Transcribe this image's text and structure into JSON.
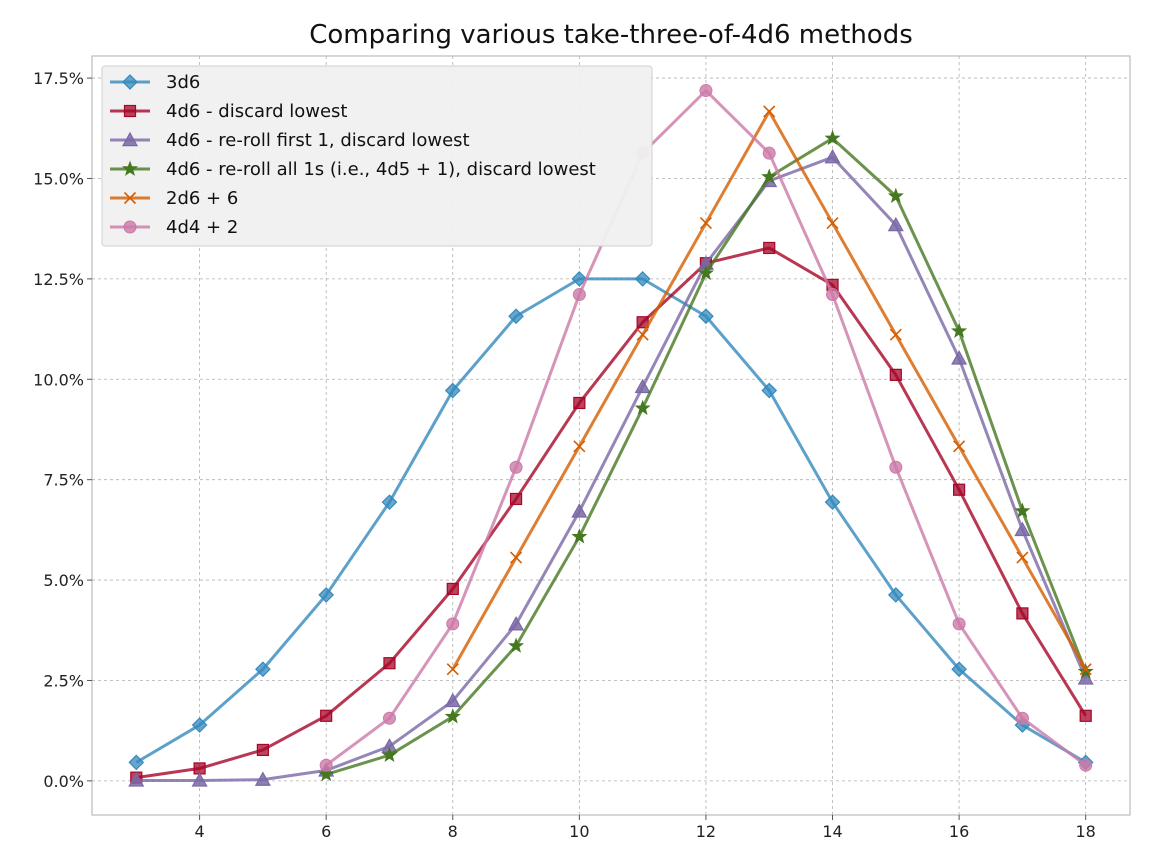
{
  "chart_data": {
    "type": "line",
    "title": "Comparing various take-three-of-4d6 methods",
    "xlabel": "",
    "ylabel": "",
    "xlim": [
      2.3,
      18.7
    ],
    "ylim": [
      -0.0085,
      0.1805
    ],
    "xticks": [
      4,
      6,
      8,
      10,
      12,
      14,
      16,
      18
    ],
    "xtick_labels": [
      "4",
      "6",
      "8",
      "10",
      "12",
      "14",
      "16",
      "18"
    ],
    "yticks": [
      0.0,
      0.025,
      0.05,
      0.075,
      0.1,
      0.125,
      0.15,
      0.175
    ],
    "ytick_labels": [
      "0.0%",
      "2.5%",
      "5.0%",
      "7.5%",
      "10.0%",
      "12.5%",
      "15.0%",
      "17.5%"
    ],
    "grid": true,
    "legend_position": "top-left",
    "series": [
      {
        "name": "3d6",
        "color": "#348abd",
        "marker": "diamond",
        "x": [
          3,
          4,
          5,
          6,
          7,
          8,
          9,
          10,
          11,
          12,
          13,
          14,
          15,
          16,
          17,
          18
        ],
        "y": [
          0.0046,
          0.0139,
          0.0278,
          0.0463,
          0.0694,
          0.0972,
          0.1157,
          0.125,
          0.125,
          0.1157,
          0.0972,
          0.0694,
          0.0463,
          0.0278,
          0.0139,
          0.0046
        ]
      },
      {
        "name": "4d6 - discard lowest",
        "color": "#a60628",
        "marker": "square",
        "x": [
          3,
          4,
          5,
          6,
          7,
          8,
          9,
          10,
          11,
          12,
          13,
          14,
          15,
          16,
          17,
          18
        ],
        "y": [
          0.0008,
          0.0031,
          0.0077,
          0.0162,
          0.0293,
          0.0478,
          0.0702,
          0.0941,
          0.1142,
          0.1289,
          0.1327,
          0.1235,
          0.1011,
          0.0725,
          0.0417,
          0.0162
        ]
      },
      {
        "name": "4d6 - re-roll first 1, discard lowest",
        "color": "#7a68a6",
        "marker": "triangle",
        "x": [
          3,
          4,
          5,
          6,
          7,
          8,
          9,
          10,
          11,
          12,
          13,
          14,
          15,
          16,
          17,
          18
        ],
        "y": [
          0.0001,
          0.0001,
          0.0003,
          0.0026,
          0.0086,
          0.0199,
          0.039,
          0.0671,
          0.0981,
          0.1288,
          0.1494,
          0.1553,
          0.1384,
          0.1052,
          0.0625,
          0.0255
        ]
      },
      {
        "name": "4d6 - re-roll all 1s (i.e., 4d5 + 1), discard lowest",
        "color": "#467821",
        "marker": "star",
        "x": [
          6,
          7,
          8,
          9,
          10,
          11,
          12,
          13,
          14,
          15,
          16,
          17,
          18
        ],
        "y": [
          0.0016,
          0.0064,
          0.016,
          0.0336,
          0.0608,
          0.0928,
          0.1264,
          0.1504,
          0.16,
          0.1456,
          0.112,
          0.0672,
          0.0272
        ]
      },
      {
        "name": "2d6 + 6",
        "color": "#d55e00",
        "marker": "x",
        "x": [
          8,
          9,
          10,
          11,
          12,
          13,
          14,
          15,
          16,
          17,
          18
        ],
        "y": [
          0.0278,
          0.0556,
          0.0833,
          0.1111,
          0.1389,
          0.1667,
          0.1389,
          0.1111,
          0.0833,
          0.0556,
          0.0278
        ]
      },
      {
        "name": "4d4 + 2",
        "color": "#cc79a7",
        "marker": "circle",
        "x": [
          6,
          7,
          8,
          9,
          10,
          11,
          12,
          13,
          14,
          15,
          16,
          17,
          18
        ],
        "y": [
          0.0039,
          0.0156,
          0.0391,
          0.0781,
          0.1211,
          0.1563,
          0.1719,
          0.1563,
          0.1211,
          0.0781,
          0.0391,
          0.0156,
          0.0039
        ]
      }
    ]
  }
}
